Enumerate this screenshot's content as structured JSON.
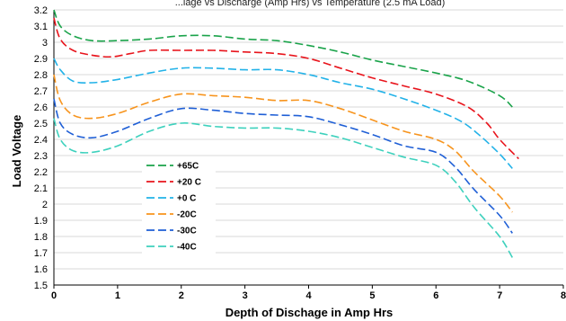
{
  "chart_data": {
    "type": "line",
    "title": "...lage vs Discharge (Amp Hrs) vs Temperature (2.5 mA Load)",
    "xlabel": "Depth of Dischage in Amp Hrs",
    "ylabel": "Load Voltage",
    "xlim": [
      0,
      8
    ],
    "ylim": [
      1.5,
      3.2
    ],
    "xticks": [
      "0",
      "1",
      "2",
      "3",
      "4",
      "5",
      "6",
      "7",
      "8"
    ],
    "yticks": [
      "1.5",
      "1.6",
      "1.7",
      "1.8",
      "1.9",
      "2",
      "2.1",
      "2.2",
      "2.3",
      "2.4",
      "2.5",
      "2.6",
      "2.7",
      "2.8",
      "2.9",
      "3",
      "3.1",
      "3.2"
    ],
    "grid": "horizontal",
    "legend": "center-left",
    "series": [
      {
        "name": "+65C",
        "color": "#1aa34a",
        "x": [
          0,
          0.1,
          0.3,
          0.6,
          1,
          1.5,
          2,
          2.5,
          3,
          3.5,
          4,
          4.5,
          5,
          5.5,
          6,
          6.5,
          7,
          7.2
        ],
        "y": [
          3.2,
          3.1,
          3.04,
          3.01,
          3.01,
          3.02,
          3.04,
          3.04,
          3.02,
          3.01,
          2.98,
          2.94,
          2.89,
          2.85,
          2.81,
          2.76,
          2.67,
          2.6
        ]
      },
      {
        "name": "+20 C",
        "color": "#e8141c",
        "x": [
          0,
          0.1,
          0.3,
          0.6,
          0.9,
          1.2,
          1.5,
          2,
          2.5,
          3,
          3.5,
          4,
          4.5,
          5,
          5.5,
          6,
          6.5,
          6.8,
          7,
          7.3
        ],
        "y": [
          3.15,
          3.02,
          2.95,
          2.92,
          2.91,
          2.93,
          2.95,
          2.95,
          2.95,
          2.94,
          2.93,
          2.9,
          2.84,
          2.78,
          2.73,
          2.68,
          2.6,
          2.5,
          2.4,
          2.28
        ]
      },
      {
        "name": "+0 C",
        "color": "#22b2e8",
        "x": [
          0,
          0.1,
          0.3,
          0.6,
          1,
          1.5,
          2,
          2.5,
          3,
          3.5,
          4,
          4.5,
          5,
          5.5,
          6,
          6.4,
          6.7,
          7,
          7.2
        ],
        "y": [
          2.9,
          2.83,
          2.76,
          2.75,
          2.77,
          2.81,
          2.84,
          2.84,
          2.83,
          2.83,
          2.8,
          2.75,
          2.71,
          2.65,
          2.58,
          2.51,
          2.42,
          2.31,
          2.22
        ]
      },
      {
        "name": "-20C",
        "color": "#f7941d",
        "x": [
          0,
          0.1,
          0.3,
          0.6,
          1,
          1.5,
          2,
          2.5,
          3,
          3.5,
          4,
          4.5,
          5,
          5.5,
          6,
          6.3,
          6.6,
          7,
          7.2
        ],
        "y": [
          2.8,
          2.64,
          2.55,
          2.53,
          2.56,
          2.63,
          2.68,
          2.67,
          2.66,
          2.64,
          2.64,
          2.59,
          2.52,
          2.45,
          2.4,
          2.33,
          2.2,
          2.05,
          1.95
        ]
      },
      {
        "name": "-30C",
        "color": "#1f5fd6",
        "x": [
          0,
          0.1,
          0.3,
          0.6,
          1,
          1.5,
          2,
          2.5,
          3,
          3.5,
          4,
          4.5,
          5,
          5.5,
          6,
          6.3,
          6.6,
          7,
          7.2
        ],
        "y": [
          2.65,
          2.5,
          2.43,
          2.41,
          2.45,
          2.53,
          2.59,
          2.58,
          2.56,
          2.55,
          2.54,
          2.49,
          2.43,
          2.36,
          2.32,
          2.23,
          2.09,
          1.93,
          1.82
        ]
      },
      {
        "name": "-40C",
        "color": "#3ed1bd",
        "x": [
          0,
          0.1,
          0.3,
          0.6,
          1,
          1.5,
          2,
          2.5,
          3,
          3.5,
          4,
          4.5,
          5,
          5.5,
          6,
          6.3,
          6.6,
          7,
          7.2
        ],
        "y": [
          2.53,
          2.4,
          2.33,
          2.32,
          2.36,
          2.45,
          2.5,
          2.48,
          2.47,
          2.47,
          2.45,
          2.41,
          2.35,
          2.29,
          2.24,
          2.14,
          1.98,
          1.8,
          1.67
        ]
      }
    ]
  }
}
